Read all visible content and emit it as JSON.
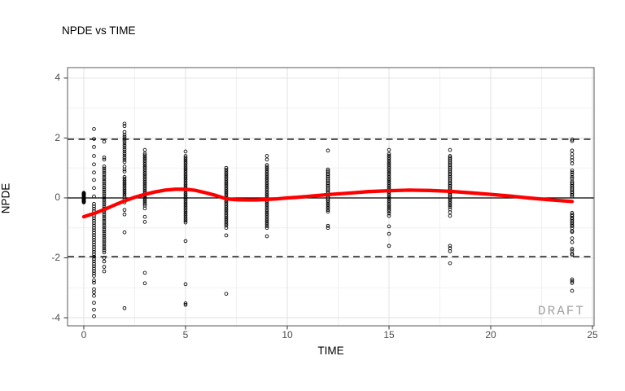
{
  "chart_data": {
    "type": "scatter",
    "title": "NPDE vs TIME",
    "xlabel": "TIME",
    "ylabel": "NPDE",
    "watermark": "DRAFT",
    "xlim": [
      -0.8,
      25.08
    ],
    "ylim": [
      -4.27,
      4.35
    ],
    "x_ticks": [
      0,
      5,
      10,
      15,
      20,
      25
    ],
    "y_ticks": [
      -4,
      -2,
      0,
      2,
      4
    ],
    "x_minor_gridlines": [
      2.5,
      7.5,
      12.5,
      17.5,
      22.5
    ],
    "y_minor_gridlines": [
      -3,
      -1,
      1,
      3
    ],
    "reference_lines": {
      "zero_line": 0,
      "upper_dashed": 1.96,
      "lower_dashed": -1.96
    },
    "grid": "on",
    "legend": "none",
    "colors": {
      "smooth_line": "#ff0000",
      "points": "#000000",
      "reference_lines": "#000000",
      "grid_major": "#e4e4e4",
      "grid_minor": "#efefef",
      "panel_border": "#595959",
      "tick_marks": "#333333",
      "tick_labels": "#4d4d4d",
      "watermark": "#a3a3a3",
      "background": "#ffffff"
    },
    "series": [
      {
        "name": "npde-observations",
        "type": "scatter",
        "marker": "open-circle",
        "columns": [
          {
            "time": 0,
            "values": [
              -0.15,
              -0.13,
              -0.12,
              -0.1,
              -0.09,
              -0.07,
              -0.06,
              -0.04,
              -0.03,
              -0.01,
              0,
              0.02,
              0.03,
              0.05,
              0.06,
              0.08,
              0.09,
              0.11,
              0.12,
              0.14,
              0.15,
              0.16,
              0.17
            ]
          },
          {
            "time": 0.5,
            "values": [
              2.3,
              1.97,
              1.7,
              1.4,
              1.12,
              0.85,
              0.6,
              0.33,
              0.05,
              -0.2,
              -0.28,
              -0.36,
              -0.44,
              -0.52,
              -0.6,
              -0.68,
              -0.76,
              -0.84,
              -0.92,
              -1.0,
              -1.08,
              -1.16,
              -1.24,
              -1.32,
              -1.4,
              -1.48,
              -1.56,
              -1.64,
              -1.72,
              -1.8,
              -1.88,
              -1.96,
              -2.04,
              -2.12,
              -2.2,
              -2.28,
              -2.36,
              -2.44,
              -2.52,
              -2.6,
              -2.75,
              -2.83,
              -3.05,
              -3.15,
              -3.27,
              -3.5,
              -3.73,
              -3.95
            ]
          },
          {
            "time": 1,
            "values": [
              1.88,
              1.35,
              1.28,
              1.05,
              0.98,
              0.91,
              0.84,
              0.77,
              0.7,
              0.63,
              0.56,
              0.49,
              0.42,
              0.35,
              0.28,
              0.21,
              0.14,
              0.07,
              0,
              -0.07,
              -0.14,
              -0.21,
              -0.28,
              -0.35,
              -0.42,
              -0.49,
              -0.56,
              -0.63,
              -0.7,
              -0.77,
              -0.84,
              -0.91,
              -0.98,
              -1.05,
              -1.12,
              -1.19,
              -1.26,
              -1.33,
              -1.4,
              -1.47,
              -1.54,
              -1.61,
              -1.68,
              -1.75,
              -1.82,
              -2.0,
              -2.12,
              -2.3,
              -2.45
            ]
          },
          {
            "time": 2,
            "values": [
              2.48,
              2.4,
              2.2,
              2.11,
              2.04,
              1.97,
              1.9,
              1.83,
              1.76,
              1.69,
              1.62,
              1.55,
              1.48,
              1.41,
              1.34,
              1.27,
              1.2,
              1.05,
              0.95,
              0.88,
              0.7,
              0.64,
              0.58,
              0.52,
              0.46,
              0.4,
              0.34,
              0.28,
              0.22,
              0.16,
              0.1,
              0.04,
              -0.05,
              -0.15,
              -0.4,
              -0.55,
              -1.15,
              -3.68
            ]
          },
          {
            "time": 3,
            "values": [
              1.6,
              1.48,
              1.42,
              1.36,
              1.3,
              1.24,
              1.18,
              1.12,
              1.06,
              1.0,
              0.94,
              0.88,
              0.82,
              0.76,
              0.7,
              0.64,
              0.58,
              0.52,
              0.46,
              0.4,
              0.34,
              0.28,
              0.22,
              0.16,
              0.1,
              0.04,
              -0.02,
              -0.08,
              -0.14,
              -0.2,
              -0.26,
              -0.35,
              -0.63,
              -0.8,
              -2.5,
              -2.85
            ]
          },
          {
            "time": 5,
            "values": [
              1.55,
              1.4,
              1.34,
              1.28,
              1.22,
              1.16,
              1.1,
              1.04,
              0.98,
              0.92,
              0.86,
              0.8,
              0.74,
              0.68,
              0.62,
              0.56,
              0.5,
              0.44,
              0.38,
              0.32,
              0.26,
              0.2,
              0.14,
              0.08,
              0.02,
              -0.04,
              -0.1,
              -0.16,
              -0.22,
              -0.28,
              -0.34,
              -0.4,
              -0.46,
              -0.52,
              -0.58,
              -0.64,
              -0.7,
              -0.76,
              -0.82,
              -1.44,
              -2.88,
              -3.52,
              -3.57
            ]
          },
          {
            "time": 7,
            "values": [
              1.0,
              0.94,
              0.88,
              0.82,
              0.76,
              0.7,
              0.64,
              0.58,
              0.52,
              0.46,
              0.4,
              0.34,
              0.28,
              0.22,
              0.16,
              0.1,
              0.04,
              -0.02,
              -0.08,
              -0.14,
              -0.2,
              -0.26,
              -0.32,
              -0.38,
              -0.44,
              -0.5,
              -0.56,
              -0.62,
              -0.68,
              -0.74,
              -0.8,
              -0.86,
              -0.92,
              -1.0,
              -1.25,
              -3.2
            ]
          },
          {
            "time": 9,
            "values": [
              1.4,
              1.28,
              1.1,
              1.04,
              0.98,
              0.92,
              0.86,
              0.8,
              0.74,
              0.68,
              0.62,
              0.56,
              0.5,
              0.44,
              0.38,
              0.32,
              0.26,
              0.2,
              0.14,
              0.08,
              0.02,
              -0.04,
              -0.1,
              -0.16,
              -0.22,
              -0.28,
              -0.34,
              -0.4,
              -0.46,
              -0.52,
              -0.58,
              -0.64,
              -0.7,
              -0.76,
              -0.82,
              -0.88,
              -0.94,
              -1.0,
              -1.28
            ]
          },
          {
            "time": 12,
            "values": [
              1.58,
              0.95,
              0.9,
              0.85,
              0.8,
              0.75,
              0.7,
              0.65,
              0.6,
              0.55,
              0.5,
              0.45,
              0.4,
              0.35,
              0.3,
              0.25,
              0.2,
              0.15,
              0.1,
              0.05,
              0,
              -0.05,
              -0.1,
              -0.16,
              -0.22,
              -0.28,
              -0.34,
              -0.4,
              -0.46,
              -0.93,
              -1.0
            ]
          },
          {
            "time": 15,
            "values": [
              1.6,
              1.47,
              1.41,
              1.35,
              1.29,
              1.23,
              1.17,
              1.11,
              1.05,
              0.99,
              0.93,
              0.87,
              0.81,
              0.75,
              0.69,
              0.63,
              0.57,
              0.51,
              0.45,
              0.39,
              0.33,
              0.27,
              0.21,
              0.15,
              0.09,
              0.03,
              -0.03,
              -0.09,
              -0.15,
              -0.21,
              -0.27,
              -0.33,
              -0.39,
              -0.45,
              -0.52,
              -0.6,
              -0.95,
              -1.2,
              -1.6
            ]
          },
          {
            "time": 18,
            "values": [
              1.6,
              1.4,
              1.35,
              1.3,
              1.25,
              1.2,
              1.15,
              1.1,
              1.05,
              1.0,
              0.95,
              0.9,
              0.85,
              0.8,
              0.75,
              0.7,
              0.65,
              0.6,
              0.55,
              0.5,
              0.45,
              0.4,
              0.35,
              0.3,
              0.25,
              0.2,
              0.15,
              0.1,
              0.05,
              0,
              -0.06,
              -0.12,
              -0.18,
              -0.24,
              -0.3,
              -0.38,
              -0.48,
              -0.6,
              -1.6,
              -1.68,
              -1.78,
              -2.18
            ]
          },
          {
            "time": 24,
            "values": [
              1.95,
              1.9,
              1.58,
              1.46,
              1.35,
              1.26,
              1.15,
              0.92,
              0.85,
              0.78,
              0.7,
              0.64,
              0.55,
              0.5,
              0.45,
              0.4,
              0.35,
              0.3,
              0.25,
              0.2,
              0.15,
              0.1,
              0.05,
              -0.5,
              -0.56,
              -0.61,
              -0.67,
              -0.72,
              -0.78,
              -0.83,
              -0.89,
              -0.94,
              -1.0,
              -1.1,
              -1.14,
              -1.35,
              -1.48,
              -1.7,
              -1.76,
              -1.86,
              -1.9,
              -2.72,
              -2.78,
              -2.84,
              -3.1
            ]
          }
        ]
      },
      {
        "name": "loess-smooth",
        "type": "line",
        "color": "#ff0000",
        "points": [
          [
            0,
            -0.63
          ],
          [
            0.5,
            -0.52
          ],
          [
            1,
            -0.39
          ],
          [
            1.5,
            -0.24
          ],
          [
            2,
            -0.1
          ],
          [
            2.5,
            0.02
          ],
          [
            3,
            0.12
          ],
          [
            3.5,
            0.2
          ],
          [
            4,
            0.26
          ],
          [
            4.5,
            0.29
          ],
          [
            5,
            0.29
          ],
          [
            5.5,
            0.25
          ],
          [
            6,
            0.17
          ],
          [
            6.5,
            0.08
          ],
          [
            7,
            -0.03
          ],
          [
            7.5,
            -0.06
          ],
          [
            8,
            -0.07
          ],
          [
            8.5,
            -0.07
          ],
          [
            9,
            -0.05
          ],
          [
            9.5,
            -0.03
          ],
          [
            10,
            0
          ],
          [
            10.5,
            0.02
          ],
          [
            11,
            0.05
          ],
          [
            11.5,
            0.08
          ],
          [
            12,
            0.11
          ],
          [
            13,
            0.16
          ],
          [
            14,
            0.21
          ],
          [
            15,
            0.24
          ],
          [
            16,
            0.26
          ],
          [
            17,
            0.25
          ],
          [
            18,
            0.22
          ],
          [
            19,
            0.17
          ],
          [
            20,
            0.12
          ],
          [
            21,
            0.06
          ],
          [
            22,
            -0.01
          ],
          [
            23,
            -0.07
          ],
          [
            24,
            -0.12
          ]
        ]
      }
    ]
  }
}
